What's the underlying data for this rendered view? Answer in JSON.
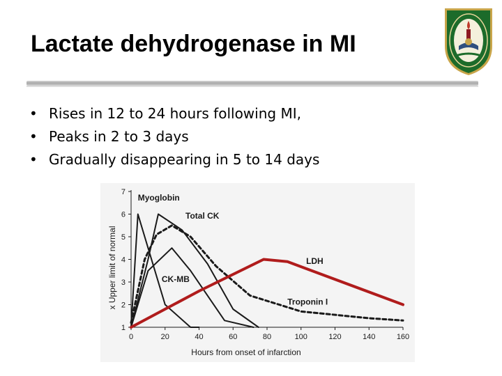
{
  "slide": {
    "title": "Lactate dehydrogenase in MI",
    "bullet_symbol": "•",
    "bullets": [
      "Rises in 12 to 24 hours following MI,",
      "Peaks in 2 to 3 days",
      "Gradually disappearing in 5 to 14 days"
    ]
  },
  "logo": {
    "icon": "university-seal-icon",
    "colors": [
      "#1c6b2a",
      "#c8a54a",
      "#8e1b22"
    ]
  },
  "colors": {
    "ldh_line": "#b01c1c",
    "curves": "#1a1a1a",
    "panel": "#f4f4f4"
  },
  "chart_data": {
    "type": "line",
    "xlabel": "Hours from onset of infarction",
    "ylabel": "x Upper limit of normal",
    "xlim": [
      0,
      160
    ],
    "ylim": [
      1,
      7
    ],
    "xticks": [
      "0",
      "20",
      "40",
      "60",
      "80",
      "100",
      "120",
      "140",
      "160"
    ],
    "yticks": [
      "1",
      "2",
      "3",
      "4",
      "5",
      "6",
      "7"
    ],
    "grid": false,
    "series": [
      {
        "name": "Myoglobin",
        "style": "solid",
        "color": "#1a1a1a",
        "x": [
          0,
          4,
          10,
          20,
          35,
          40
        ],
        "y": [
          1,
          6,
          4.5,
          2,
          1,
          1
        ]
      },
      {
        "name": "Total CK",
        "style": "solid",
        "color": "#1a1a1a",
        "x": [
          0,
          10,
          16,
          30,
          45,
          60,
          75
        ],
        "y": [
          1,
          4,
          6,
          5.3,
          3.8,
          1.8,
          1
        ]
      },
      {
        "name": "CK-MB",
        "style": "solid",
        "color": "#1a1a1a",
        "x": [
          0,
          10,
          24,
          35,
          55,
          72
        ],
        "y": [
          1,
          3.5,
          4.5,
          3.5,
          1.3,
          1
        ]
      },
      {
        "name": "Troponin I",
        "style": "dashed",
        "color": "#1a1a1a",
        "x": [
          0,
          8,
          15,
          24,
          35,
          50,
          70,
          100,
          140,
          160
        ],
        "y": [
          1.2,
          4,
          5.1,
          5.5,
          5,
          3.7,
          2.4,
          1.7,
          1.4,
          1.3
        ]
      },
      {
        "name": "LDH",
        "style": "solid",
        "color": "#b01c1c",
        "x": [
          0,
          40,
          78,
          92,
          160
        ],
        "y": [
          1,
          2.6,
          4,
          3.9,
          2
        ]
      }
    ],
    "labels": [
      {
        "series": "Myoglobin",
        "text": "Myoglobin",
        "x": 4,
        "y": 6.6
      },
      {
        "series": "Total CK",
        "text": "Total CK",
        "x": 32,
        "y": 5.8
      },
      {
        "series": "CK-MB",
        "text": "CK-MB",
        "x": 18,
        "y": 3
      },
      {
        "series": "LDH",
        "text": "LDH",
        "x": 103,
        "y": 3.8
      },
      {
        "series": "Troponin I",
        "text": "Troponin I",
        "x": 92,
        "y": 2
      }
    ]
  }
}
